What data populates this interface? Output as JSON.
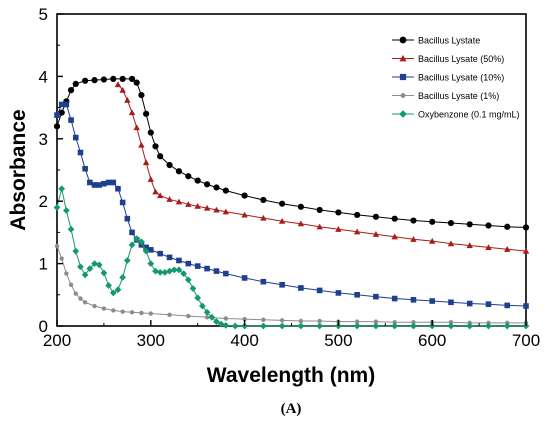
{
  "chart_data": {
    "type": "line",
    "title": "",
    "xlabel": "Wavelength (nm)",
    "ylabel": "Absorbance",
    "xlim": [
      200,
      700
    ],
    "ylim": [
      0,
      5
    ],
    "xticks": [
      200,
      300,
      400,
      500,
      600,
      700
    ],
    "yticks": [
      0,
      1,
      2,
      3,
      4,
      5
    ],
    "grid": false,
    "legend_position": "top-right",
    "panel_label": "(A)",
    "series": [
      {
        "name": "Bacillus Lystate",
        "color": "#000000",
        "marker": "circle",
        "points": [
          [
            200,
            3.2
          ],
          [
            205,
            3.42
          ],
          [
            210,
            3.6
          ],
          [
            215,
            3.78
          ],
          [
            220,
            3.88
          ],
          [
            230,
            3.93
          ],
          [
            240,
            3.94
          ],
          [
            250,
            3.95
          ],
          [
            260,
            3.96
          ],
          [
            270,
            3.96
          ],
          [
            280,
            3.96
          ],
          [
            285,
            3.9
          ],
          [
            290,
            3.7
          ],
          [
            295,
            3.4
          ],
          [
            300,
            3.1
          ],
          [
            305,
            2.88
          ],
          [
            310,
            2.72
          ],
          [
            320,
            2.58
          ],
          [
            330,
            2.48
          ],
          [
            340,
            2.4
          ],
          [
            350,
            2.33
          ],
          [
            360,
            2.27
          ],
          [
            370,
            2.22
          ],
          [
            380,
            2.17
          ],
          [
            400,
            2.09
          ],
          [
            420,
            2.02
          ],
          [
            440,
            1.96
          ],
          [
            460,
            1.91
          ],
          [
            480,
            1.86
          ],
          [
            500,
            1.82
          ],
          [
            520,
            1.78
          ],
          [
            540,
            1.75
          ],
          [
            560,
            1.72
          ],
          [
            580,
            1.69
          ],
          [
            600,
            1.67
          ],
          [
            620,
            1.65
          ],
          [
            640,
            1.63
          ],
          [
            660,
            1.61
          ],
          [
            680,
            1.59
          ],
          [
            700,
            1.58
          ]
        ]
      },
      {
        "name": "Bacillus Lysate (50%)",
        "color": "#a81c1c",
        "marker": "triangle",
        "points": [
          [
            265,
            3.87
          ],
          [
            270,
            3.78
          ],
          [
            275,
            3.62
          ],
          [
            280,
            3.42
          ],
          [
            285,
            3.18
          ],
          [
            290,
            2.9
          ],
          [
            295,
            2.62
          ],
          [
            300,
            2.35
          ],
          [
            305,
            2.15
          ],
          [
            310,
            2.09
          ],
          [
            320,
            2.03
          ],
          [
            330,
            1.99
          ],
          [
            340,
            1.95
          ],
          [
            350,
            1.92
          ],
          [
            360,
            1.89
          ],
          [
            370,
            1.86
          ],
          [
            380,
            1.83
          ],
          [
            400,
            1.78
          ],
          [
            420,
            1.73
          ],
          [
            440,
            1.68
          ],
          [
            460,
            1.64
          ],
          [
            480,
            1.59
          ],
          [
            500,
            1.55
          ],
          [
            520,
            1.51
          ],
          [
            540,
            1.47
          ],
          [
            560,
            1.43
          ],
          [
            580,
            1.39
          ],
          [
            600,
            1.36
          ],
          [
            620,
            1.32
          ],
          [
            640,
            1.29
          ],
          [
            660,
            1.26
          ],
          [
            680,
            1.23
          ],
          [
            700,
            1.2
          ]
        ]
      },
      {
        "name": "Bacillus Lysate (10%)",
        "color": "#1f3f8f",
        "marker": "square",
        "points": [
          [
            200,
            3.38
          ],
          [
            205,
            3.55
          ],
          [
            210,
            3.55
          ],
          [
            215,
            3.3
          ],
          [
            220,
            3.02
          ],
          [
            225,
            2.78
          ],
          [
            230,
            2.52
          ],
          [
            235,
            2.3
          ],
          [
            240,
            2.26
          ],
          [
            245,
            2.26
          ],
          [
            250,
            2.28
          ],
          [
            255,
            2.3
          ],
          [
            260,
            2.3
          ],
          [
            265,
            2.2
          ],
          [
            270,
            1.98
          ],
          [
            275,
            1.72
          ],
          [
            280,
            1.5
          ],
          [
            285,
            1.38
          ],
          [
            290,
            1.3
          ],
          [
            295,
            1.26
          ],
          [
            300,
            1.22
          ],
          [
            310,
            1.16
          ],
          [
            320,
            1.1
          ],
          [
            330,
            1.05
          ],
          [
            340,
            1.0
          ],
          [
            350,
            0.96
          ],
          [
            360,
            0.92
          ],
          [
            370,
            0.88
          ],
          [
            380,
            0.84
          ],
          [
            400,
            0.77
          ],
          [
            420,
            0.71
          ],
          [
            440,
            0.66
          ],
          [
            460,
            0.61
          ],
          [
            480,
            0.57
          ],
          [
            500,
            0.53
          ],
          [
            520,
            0.5
          ],
          [
            540,
            0.47
          ],
          [
            560,
            0.44
          ],
          [
            580,
            0.42
          ],
          [
            600,
            0.4
          ],
          [
            620,
            0.38
          ],
          [
            640,
            0.36
          ],
          [
            660,
            0.35
          ],
          [
            680,
            0.33
          ],
          [
            700,
            0.32
          ]
        ]
      },
      {
        "name": "Bacillus Lysate (1%)",
        "color": "#8c8c8c",
        "marker": "circle",
        "points": [
          [
            200,
            1.28
          ],
          [
            205,
            1.08
          ],
          [
            210,
            0.84
          ],
          [
            215,
            0.66
          ],
          [
            220,
            0.52
          ],
          [
            225,
            0.44
          ],
          [
            230,
            0.38
          ],
          [
            240,
            0.32
          ],
          [
            250,
            0.28
          ],
          [
            260,
            0.25
          ],
          [
            270,
            0.23
          ],
          [
            280,
            0.22
          ],
          [
            290,
            0.21
          ],
          [
            300,
            0.2
          ],
          [
            320,
            0.18
          ],
          [
            340,
            0.16
          ],
          [
            360,
            0.14
          ],
          [
            380,
            0.12
          ],
          [
            400,
            0.11
          ],
          [
            420,
            0.1
          ],
          [
            440,
            0.09
          ],
          [
            460,
            0.08
          ],
          [
            480,
            0.08
          ],
          [
            500,
            0.07
          ],
          [
            520,
            0.07
          ],
          [
            540,
            0.07
          ],
          [
            560,
            0.06
          ],
          [
            580,
            0.06
          ],
          [
            600,
            0.06
          ],
          [
            620,
            0.06
          ],
          [
            640,
            0.05
          ],
          [
            660,
            0.05
          ],
          [
            680,
            0.05
          ],
          [
            700,
            0.05
          ]
        ]
      },
      {
        "name": "Oxybenzone (0.1 mg/mL)",
        "color": "#129a6a",
        "marker": "diamond",
        "points": [
          [
            200,
            1.9
          ],
          [
            205,
            2.2
          ],
          [
            210,
            1.85
          ],
          [
            215,
            1.55
          ],
          [
            220,
            1.2
          ],
          [
            225,
            0.95
          ],
          [
            230,
            0.82
          ],
          [
            235,
            0.92
          ],
          [
            240,
            1.0
          ],
          [
            245,
            0.98
          ],
          [
            250,
            0.85
          ],
          [
            255,
            0.65
          ],
          [
            260,
            0.53
          ],
          [
            265,
            0.58
          ],
          [
            270,
            0.78
          ],
          [
            275,
            1.05
          ],
          [
            280,
            1.3
          ],
          [
            285,
            1.4
          ],
          [
            290,
            1.35
          ],
          [
            295,
            1.2
          ],
          [
            300,
            1.0
          ],
          [
            305,
            0.88
          ],
          [
            310,
            0.86
          ],
          [
            315,
            0.86
          ],
          [
            320,
            0.88
          ],
          [
            325,
            0.9
          ],
          [
            330,
            0.9
          ],
          [
            335,
            0.84
          ],
          [
            340,
            0.74
          ],
          [
            345,
            0.6
          ],
          [
            350,
            0.45
          ],
          [
            355,
            0.32
          ],
          [
            360,
            0.22
          ],
          [
            365,
            0.14
          ],
          [
            370,
            0.07
          ],
          [
            375,
            0.03
          ],
          [
            380,
            0.01
          ],
          [
            390,
            0.0
          ],
          [
            400,
            0.0
          ],
          [
            420,
            0.0
          ],
          [
            440,
            0.0
          ],
          [
            460,
            0.0
          ],
          [
            480,
            0.0
          ],
          [
            500,
            0.0
          ],
          [
            520,
            0.0
          ],
          [
            540,
            0.0
          ],
          [
            560,
            0.0
          ],
          [
            580,
            0.0
          ],
          [
            600,
            0.0
          ],
          [
            620,
            0.0
          ],
          [
            640,
            0.0
          ],
          [
            660,
            0.0
          ],
          [
            680,
            0.0
          ],
          [
            700,
            0.0
          ]
        ]
      }
    ]
  }
}
